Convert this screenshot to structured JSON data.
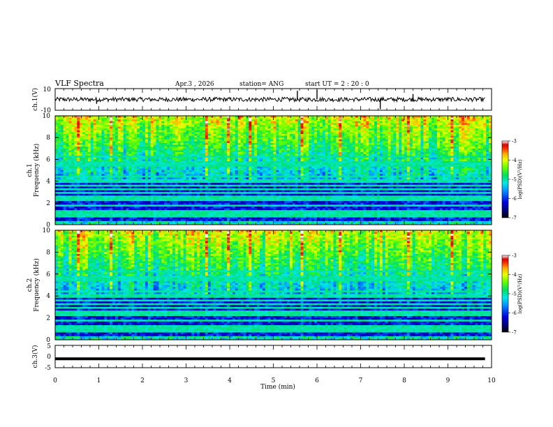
{
  "header": {
    "title": "VLF Spectra",
    "date": "Apr.3  , 2026",
    "station": "station= ANG",
    "start": "start  UT =   2  : 20 : 0"
  },
  "chart_data": [
    {
      "type": "line",
      "name": "ch1-waveform",
      "ylabel": "ch.1(V)",
      "ylim": [
        -10,
        10
      ],
      "yticks": [
        "10",
        "-10"
      ],
      "baseline": 0,
      "noise_amplitude": 2,
      "spikes": [
        {
          "t": 5.55,
          "v": 8
        },
        {
          "t": 6.0,
          "v": 9
        },
        {
          "t": 7.45,
          "v": -9
        },
        {
          "t": 8.2,
          "v": 5
        },
        {
          "t": 0.95,
          "v": -4
        }
      ]
    },
    {
      "type": "heatmap",
      "name": "ch1-spectrogram",
      "ylabel_line1": "ch.1",
      "ylabel_line2": "Frequency  (kHz)",
      "ylim": [
        0,
        10
      ],
      "yticks": [
        "0",
        "2",
        "4",
        "6",
        "8",
        "10"
      ],
      "colorbar": {
        "label": "log(PSD)(V²/Hz)",
        "range": [
          -7,
          -3
        ],
        "ticks": [
          "-3",
          "-4",
          "-5",
          "-6",
          "-7"
        ]
      }
    },
    {
      "type": "heatmap",
      "name": "ch2-spectrogram",
      "ylabel_line1": "ch.2",
      "ylabel_line2": "Frequency  (kHz)",
      "ylim": [
        0,
        10
      ],
      "yticks": [
        "0",
        "2",
        "4",
        "6",
        "8",
        "10"
      ],
      "colorbar": {
        "label": "log(PSD)(V²/Hz)",
        "range": [
          -7,
          -3
        ],
        "ticks": [
          "-3",
          "-4",
          "-5",
          "-6",
          "-7"
        ]
      }
    },
    {
      "type": "line",
      "name": "ch3-waveform",
      "ylabel": "ch.3(V)",
      "ylim": [
        -5,
        5
      ],
      "yticks": [
        "5",
        "0",
        "-5"
      ],
      "value": -1,
      "x_range": [
        0,
        9.85
      ]
    }
  ],
  "xaxis": {
    "label": "Time  (min)",
    "range": [
      0,
      10
    ],
    "ticks": [
      "0",
      "1",
      "2",
      "3",
      "4",
      "5",
      "6",
      "7",
      "8",
      "9",
      "10"
    ]
  },
  "colors": {
    "frame": "#000000",
    "trace": "#000000",
    "colormap": [
      "#000000",
      "#00006a",
      "#0000e0",
      "#0090ff",
      "#00e8e8",
      "#00e060",
      "#60ff00",
      "#e8ff00",
      "#ffb000",
      "#ff3000",
      "#d80000",
      "#ffffff"
    ]
  }
}
